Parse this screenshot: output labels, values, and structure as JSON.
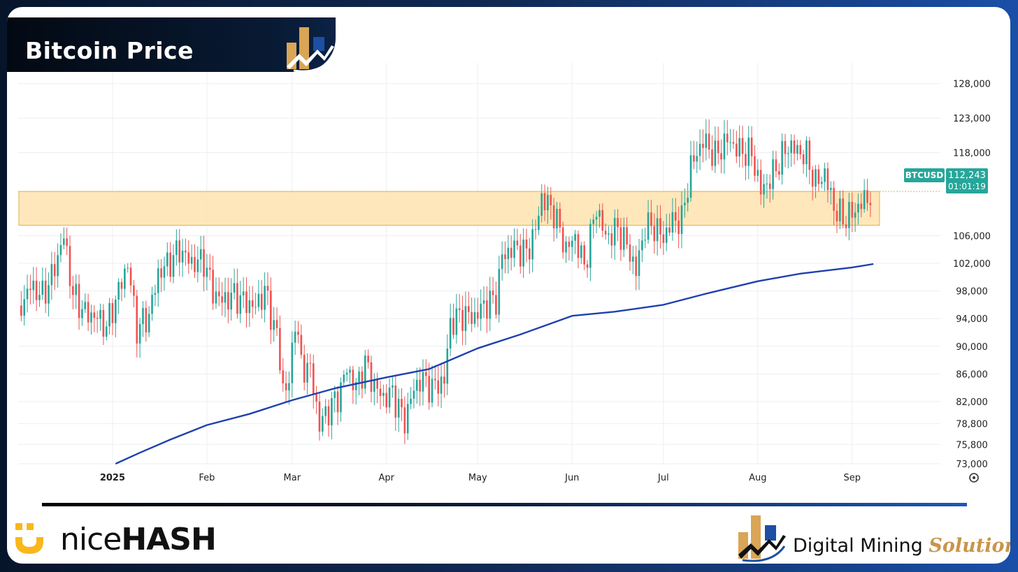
{
  "header": {
    "title": "Bitcoin Price"
  },
  "footer": {
    "nicehash_light": "nice",
    "nicehash_heavy": "HASH",
    "dms_main": "Digital Mining",
    "dms_accent": "Solutions"
  },
  "colors": {
    "up": "#26a69a",
    "down": "#ef5350",
    "ma_line": "#1e40af",
    "zone_fill": "#ffe3b0",
    "zone_border": "#e3b14a",
    "label_bg": "#26a69a",
    "gold": "#d9a556",
    "blue": "#1d4fa3"
  },
  "chart_data": {
    "type": "line",
    "symbol": "BTCUSD",
    "last_price_label": "112,243",
    "countdown_label": "01:01:19",
    "ylim": [
      73000,
      131000
    ],
    "y_ticks": [
      {
        "value": 128000,
        "label": "128,000"
      },
      {
        "value": 123000,
        "label": "123,000"
      },
      {
        "value": 118000,
        "label": "118,000"
      },
      {
        "value": 106000,
        "label": "106,000"
      },
      {
        "value": 102000,
        "label": "102,000"
      },
      {
        "value": 98000,
        "label": "98,000"
      },
      {
        "value": 94000,
        "label": "94,000"
      },
      {
        "value": 90000,
        "label": "90,000"
      },
      {
        "value": 86000,
        "label": "86,000"
      },
      {
        "value": 82000,
        "label": "82,000"
      },
      {
        "value": 78800,
        "label": "78,800"
      },
      {
        "value": 75800,
        "label": "75,800"
      },
      {
        "value": 73000,
        "label": "73,000"
      }
    ],
    "x_ticks": [
      {
        "date": "2025-01-01",
        "label": "2025",
        "bold": true
      },
      {
        "date": "2025-02-01",
        "label": "Feb"
      },
      {
        "date": "2025-03-01",
        "label": "Mar"
      },
      {
        "date": "2025-04-01",
        "label": "Apr"
      },
      {
        "date": "2025-05-01",
        "label": "May"
      },
      {
        "date": "2025-06-01",
        "label": "Jun"
      },
      {
        "date": "2025-07-01",
        "label": "Jul"
      },
      {
        "date": "2025-08-01",
        "label": "Aug"
      },
      {
        "date": "2025-09-01",
        "label": "Sep"
      }
    ],
    "x_range": [
      "2024-12-01",
      "2025-09-30"
    ],
    "resistance_zone": {
      "low": 107500,
      "high": 112400,
      "from": "2024-12-01",
      "to": "2025-09-10"
    },
    "closes": [
      [
        "2024-12-02",
        95900
      ],
      [
        "2024-12-05",
        98700
      ],
      [
        "2024-12-09",
        97300
      ],
      [
        "2024-12-12",
        100000
      ],
      [
        "2024-12-16",
        106000
      ],
      [
        "2024-12-19",
        97500
      ],
      [
        "2024-12-23",
        94800
      ],
      [
        "2024-12-27",
        94200
      ],
      [
        "2024-12-30",
        92800
      ],
      [
        "2025-01-03",
        98000
      ],
      [
        "2025-01-06",
        102000
      ],
      [
        "2025-01-09",
        92500
      ],
      [
        "2025-01-13",
        94500
      ],
      [
        "2025-01-16",
        100500
      ],
      [
        "2025-01-20",
        102300
      ],
      [
        "2025-01-23",
        104000
      ],
      [
        "2025-01-27",
        102000
      ],
      [
        "2025-01-31",
        102400
      ],
      [
        "2025-02-03",
        97900
      ],
      [
        "2025-02-06",
        96600
      ],
      [
        "2025-02-10",
        97400
      ],
      [
        "2025-02-13",
        96500
      ],
      [
        "2025-02-17",
        95700
      ],
      [
        "2025-02-20",
        98000
      ],
      [
        "2025-02-24",
        91500
      ],
      [
        "2025-02-26",
        84000
      ],
      [
        "2025-02-28",
        84400
      ],
      [
        "2025-03-02",
        94300
      ],
      [
        "2025-03-04",
        87200
      ],
      [
        "2025-03-07",
        86700
      ],
      [
        "2025-03-10",
        78600
      ],
      [
        "2025-03-13",
        80900
      ],
      [
        "2025-03-16",
        82600
      ],
      [
        "2025-03-19",
        86800
      ],
      [
        "2025-03-22",
        84000
      ],
      [
        "2025-03-25",
        87500
      ],
      [
        "2025-03-28",
        84300
      ],
      [
        "2025-03-31",
        82500
      ],
      [
        "2025-04-03",
        83200
      ],
      [
        "2025-04-07",
        79100
      ],
      [
        "2025-04-09",
        82600
      ],
      [
        "2025-04-12",
        85300
      ],
      [
        "2025-04-16",
        84000
      ],
      [
        "2025-04-20",
        85100
      ],
      [
        "2025-04-22",
        93400
      ],
      [
        "2025-04-26",
        94600
      ],
      [
        "2025-04-30",
        94200
      ],
      [
        "2025-05-03",
        96000
      ],
      [
        "2025-05-07",
        96800
      ],
      [
        "2025-05-09",
        103000
      ],
      [
        "2025-05-13",
        104200
      ],
      [
        "2025-05-17",
        103500
      ],
      [
        "2025-05-20",
        106800
      ],
      [
        "2025-05-22",
        111600
      ],
      [
        "2025-05-26",
        109400
      ],
      [
        "2025-05-30",
        104000
      ],
      [
        "2025-06-02",
        105800
      ],
      [
        "2025-06-05",
        101500
      ],
      [
        "2025-06-09",
        110200
      ],
      [
        "2025-06-12",
        105700
      ],
      [
        "2025-06-16",
        107000
      ],
      [
        "2025-06-19",
        104600
      ],
      [
        "2025-06-22",
        100900
      ],
      [
        "2025-06-25",
        107300
      ],
      [
        "2025-06-28",
        107300
      ],
      [
        "2025-07-01",
        105700
      ],
      [
        "2025-07-04",
        108200
      ],
      [
        "2025-07-07",
        108200
      ],
      [
        "2025-07-10",
        116000
      ],
      [
        "2025-07-14",
        119800
      ],
      [
        "2025-07-18",
        117500
      ],
      [
        "2025-07-22",
        119900
      ],
      [
        "2025-07-26",
        118300
      ],
      [
        "2025-07-30",
        117800
      ],
      [
        "2025-08-02",
        112500
      ],
      [
        "2025-08-05",
        114100
      ],
      [
        "2025-08-08",
        116700
      ],
      [
        "2025-08-11",
        119000
      ],
      [
        "2025-08-14",
        118300
      ],
      [
        "2025-08-17",
        117500
      ],
      [
        "2025-08-20",
        113500
      ],
      [
        "2025-08-23",
        115000
      ],
      [
        "2025-08-26",
        110100
      ],
      [
        "2025-08-29",
        108400
      ],
      [
        "2025-09-01",
        109200
      ],
      [
        "2025-09-04",
        110700
      ],
      [
        "2025-09-08",
        112243
      ]
    ],
    "moving_average": [
      [
        "2025-01-02",
        73000
      ],
      [
        "2025-01-10",
        74600
      ],
      [
        "2025-01-20",
        76500
      ],
      [
        "2025-02-01",
        78600
      ],
      [
        "2025-02-15",
        80200
      ],
      [
        "2025-03-01",
        82200
      ],
      [
        "2025-03-15",
        83900
      ],
      [
        "2025-04-01",
        85500
      ],
      [
        "2025-04-15",
        86700
      ],
      [
        "2025-05-01",
        89700
      ],
      [
        "2025-05-15",
        91700
      ],
      [
        "2025-06-01",
        94400
      ],
      [
        "2025-06-15",
        95000
      ],
      [
        "2025-07-01",
        96000
      ],
      [
        "2025-07-15",
        97600
      ],
      [
        "2025-08-01",
        99400
      ],
      [
        "2025-08-15",
        100500
      ],
      [
        "2025-09-01",
        101400
      ],
      [
        "2025-09-08",
        101900
      ]
    ]
  }
}
